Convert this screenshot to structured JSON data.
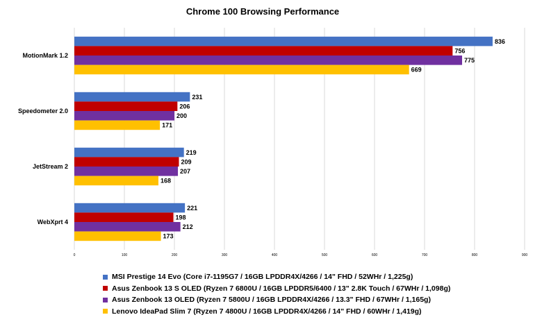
{
  "chart_data": {
    "type": "bar",
    "orientation": "horizontal",
    "title": "Chrome 100 Browsing Performance",
    "categories": [
      "MotionMark 1.2",
      "Speedometer 2.0",
      "JetStream 2",
      "WebXprt 4"
    ],
    "series": [
      {
        "name": "MSI Prestige 14 Evo (Core i7-1195G7 / 16GB LPDDR4X/4266 / 14\" FHD / 52WHr / 1,225g)",
        "color": "#4472C4",
        "values": [
          836,
          231,
          219,
          221
        ]
      },
      {
        "name": "Asus Zenbook 13 S OLED (Ryzen 7 6800U / 16GB LPDDR5/6400 / 13\" 2.8K Touch / 67WHr / 1,098g)",
        "color": "#C00000",
        "values": [
          756,
          206,
          209,
          198
        ]
      },
      {
        "name": "Asus Zenbook 13 OLED (Ryzen 7 5800U / 16GB LPDDR4X/4266 / 13.3\" FHD / 67WHr / 1,165g)",
        "color": "#7030A0",
        "values": [
          775,
          200,
          207,
          212
        ]
      },
      {
        "name": "Lenovo IdeaPad Slim 7 (Ryzen 7 4800U / 16GB LPDDR4X/4266 / 14\" FHD / 60WHr / 1,419g)",
        "color": "#FFC000",
        "values": [
          669,
          171,
          168,
          173
        ]
      }
    ],
    "xlim": [
      0,
      900
    ],
    "xticks": [
      "0",
      "100",
      "200",
      "300",
      "400",
      "500",
      "600",
      "700",
      "800",
      "900"
    ],
    "grid": true,
    "legend_position": "bottom"
  }
}
